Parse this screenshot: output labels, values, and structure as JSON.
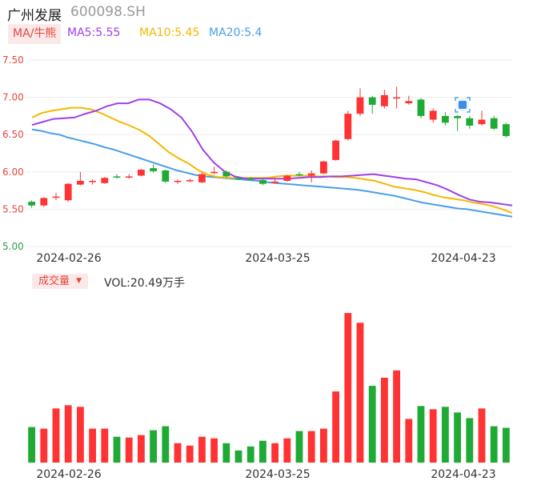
{
  "header": {
    "name": "广州发展",
    "code": "600098.SH",
    "ma_tag": "MA/牛熊",
    "ma5_label": "MA5:5.55",
    "ma10_label": "MA10:5.45",
    "ma20_label": "MA20:5.4"
  },
  "volume_header": {
    "tag": "成交量",
    "label": "VOL:20.49万手"
  },
  "colors": {
    "up": "#ff3333",
    "down": "#1faa35",
    "ma5": "#a040e8",
    "ma10": "#f5b800",
    "ma20": "#4a9eea"
  },
  "chart_data": [
    {
      "type": "candlestick",
      "ylim": [
        5.0,
        7.5
      ],
      "y_ticks": [
        "7.50",
        "7.00",
        "6.50",
        "6.00",
        "5.50",
        "5.00"
      ],
      "x_tick_labels": [
        "2024-02-26",
        "2024-03-25",
        "2024-04-23"
      ],
      "candles": [
        {
          "o": 5.6,
          "c": 5.55,
          "h": 5.62,
          "l": 5.52
        },
        {
          "o": 5.55,
          "c": 5.65,
          "h": 5.66,
          "l": 5.53
        },
        {
          "o": 5.66,
          "c": 5.67,
          "h": 5.72,
          "l": 5.62
        },
        {
          "o": 5.62,
          "c": 5.84,
          "h": 5.85,
          "l": 5.6
        },
        {
          "o": 5.83,
          "c": 5.88,
          "h": 6.0,
          "l": 5.82
        },
        {
          "o": 5.87,
          "c": 5.88,
          "h": 5.9,
          "l": 5.83
        },
        {
          "o": 5.85,
          "c": 5.92,
          "h": 5.93,
          "l": 5.84
        },
        {
          "o": 5.94,
          "c": 5.93,
          "h": 5.97,
          "l": 5.91
        },
        {
          "o": 5.93,
          "c": 5.94,
          "h": 5.97,
          "l": 5.91
        },
        {
          "o": 5.95,
          "c": 6.03,
          "h": 6.04,
          "l": 5.94
        },
        {
          "o": 6.05,
          "c": 6.01,
          "h": 6.1,
          "l": 5.99
        },
        {
          "o": 6.02,
          "c": 5.87,
          "h": 6.03,
          "l": 5.85
        },
        {
          "o": 5.88,
          "c": 5.88,
          "h": 5.9,
          "l": 5.84
        },
        {
          "o": 5.88,
          "c": 5.89,
          "h": 5.91,
          "l": 5.86
        },
        {
          "o": 5.86,
          "c": 5.97,
          "h": 5.99,
          "l": 5.85
        },
        {
          "o": 5.99,
          "c": 6.0,
          "h": 6.07,
          "l": 5.97
        },
        {
          "o": 6.0,
          "c": 5.94,
          "h": 6.02,
          "l": 5.92
        },
        {
          "o": 5.92,
          "c": 5.91,
          "h": 5.94,
          "l": 5.89
        },
        {
          "o": 5.91,
          "c": 5.9,
          "h": 5.93,
          "l": 5.89
        },
        {
          "o": 5.89,
          "c": 5.84,
          "h": 5.91,
          "l": 5.82
        },
        {
          "o": 5.85,
          "c": 5.87,
          "h": 5.92,
          "l": 5.84
        },
        {
          "o": 5.88,
          "c": 5.95,
          "h": 5.96,
          "l": 5.87
        },
        {
          "o": 5.97,
          "c": 5.96,
          "h": 6.0,
          "l": 5.94
        },
        {
          "o": 5.95,
          "c": 5.98,
          "h": 6.02,
          "l": 5.86
        },
        {
          "o": 5.98,
          "c": 6.14,
          "h": 6.15,
          "l": 5.97
        },
        {
          "o": 6.16,
          "c": 6.42,
          "h": 6.43,
          "l": 6.15
        },
        {
          "o": 6.44,
          "c": 6.78,
          "h": 6.82,
          "l": 6.42
        },
        {
          "o": 6.78,
          "c": 7.0,
          "h": 7.12,
          "l": 6.75
        },
        {
          "o": 7.0,
          "c": 6.9,
          "h": 7.02,
          "l": 6.78
        },
        {
          "o": 6.88,
          "c": 7.03,
          "h": 7.1,
          "l": 6.85
        },
        {
          "o": 7.0,
          "c": 7.0,
          "h": 7.14,
          "l": 6.85
        },
        {
          "o": 6.92,
          "c": 6.95,
          "h": 7.02,
          "l": 6.9
        },
        {
          "o": 6.97,
          "c": 6.75,
          "h": 6.99,
          "l": 6.72
        },
        {
          "o": 6.7,
          "c": 6.82,
          "h": 6.85,
          "l": 6.66
        },
        {
          "o": 6.75,
          "c": 6.66,
          "h": 6.8,
          "l": 6.62
        },
        {
          "o": 6.75,
          "c": 6.72,
          "h": 6.76,
          "l": 6.55
        },
        {
          "o": 6.72,
          "c": 6.62,
          "h": 6.75,
          "l": 6.58
        },
        {
          "o": 6.64,
          "c": 6.7,
          "h": 6.82,
          "l": 6.62
        },
        {
          "o": 6.72,
          "c": 6.58,
          "h": 6.75,
          "l": 6.56
        },
        {
          "o": 6.64,
          "c": 6.48,
          "h": 6.66,
          "l": 6.46
        }
      ],
      "ma5": [
        6.63,
        6.67,
        6.71,
        6.72,
        6.73,
        6.78,
        6.82,
        6.88,
        6.92,
        6.92,
        6.97,
        6.97,
        6.92,
        6.84,
        6.73,
        6.54,
        6.3,
        6.13,
        6.01,
        5.94,
        5.91,
        5.91,
        5.91,
        5.91,
        5.91,
        5.92,
        5.93,
        5.93,
        5.94,
        5.94,
        5.95,
        5.96,
        5.97,
        5.95,
        5.93,
        5.91,
        5.9,
        5.86,
        5.82,
        5.76,
        5.69,
        5.63,
        5.6,
        5.59,
        5.57,
        5.55
      ],
      "ma10": [
        6.73,
        6.79,
        6.82,
        6.84,
        6.86,
        6.86,
        6.84,
        6.79,
        6.73,
        6.67,
        6.62,
        6.56,
        6.48,
        6.37,
        6.26,
        6.18,
        6.11,
        6.02,
        5.96,
        5.93,
        5.92,
        5.92,
        5.92,
        5.92,
        5.92,
        5.94,
        5.95,
        5.95,
        5.95,
        5.94,
        5.94,
        5.93,
        5.93,
        5.92,
        5.9,
        5.88,
        5.84,
        5.8,
        5.78,
        5.76,
        5.73,
        5.69,
        5.66,
        5.64,
        5.62,
        5.59,
        5.57,
        5.54,
        5.5,
        5.45
      ],
      "ma20": [
        6.57,
        6.55,
        6.52,
        6.5,
        6.46,
        6.43,
        6.4,
        6.37,
        6.33,
        6.3,
        6.26,
        6.22,
        6.18,
        6.14,
        6.1,
        6.06,
        6.02,
        5.99,
        5.96,
        5.94,
        5.93,
        5.92,
        5.91,
        5.9,
        5.89,
        5.88,
        5.86,
        5.85,
        5.84,
        5.83,
        5.82,
        5.81,
        5.8,
        5.79,
        5.78,
        5.77,
        5.76,
        5.74,
        5.72,
        5.7,
        5.68,
        5.65,
        5.62,
        5.59,
        5.57,
        5.55,
        5.53,
        5.51,
        5.5,
        5.48,
        5.46,
        5.44,
        5.42,
        5.4
      ]
    },
    {
      "type": "bar",
      "x_tick_labels": [
        "2024-02-26",
        "2024-03-25",
        "2024-04-23"
      ],
      "values": [
        44,
        42,
        67,
        71,
        69,
        42,
        42,
        32,
        31,
        34,
        40,
        45,
        24,
        21,
        32,
        30,
        24,
        15,
        20,
        27,
        24,
        30,
        39,
        39,
        42,
        88,
        185,
        173,
        95,
        105,
        114,
        54,
        70,
        66,
        69,
        62,
        55,
        67,
        45,
        43
      ],
      "ylim": [
        0,
        200
      ]
    }
  ]
}
